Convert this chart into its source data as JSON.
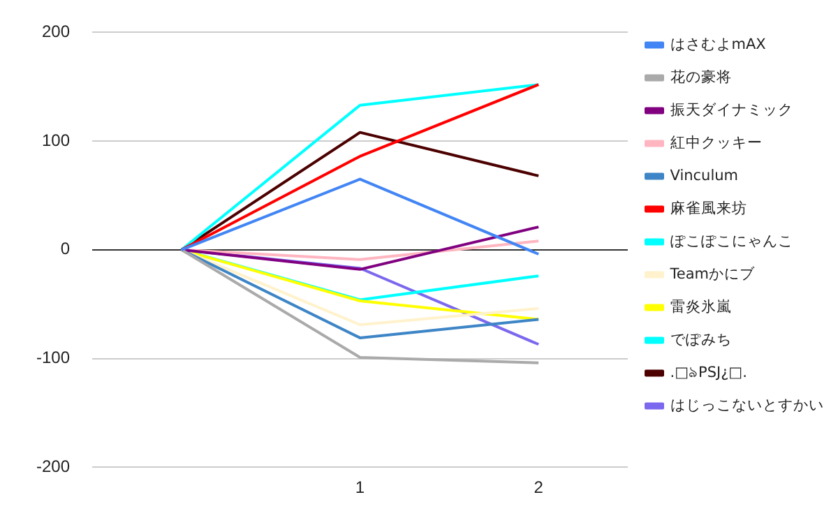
{
  "chart_data": {
    "type": "line",
    "categories": [
      null,
      "1",
      "2"
    ],
    "series": [
      {
        "name": "はさむよmAX",
        "color": "#4285f4",
        "values": [
          0,
          65,
          -4
        ]
      },
      {
        "name": "花の豪将",
        "color": "#aaaaaa",
        "values": [
          0,
          -99,
          -104
        ]
      },
      {
        "name": "振天ダイナミック",
        "color": "#800080",
        "values": [
          0,
          -18,
          21
        ]
      },
      {
        "name": "紅中クッキー",
        "color": "#ffb6c1",
        "values": [
          0,
          -9,
          8
        ]
      },
      {
        "name": "Vinculum",
        "color": "#3d85c6",
        "values": [
          0,
          -81,
          -64
        ]
      },
      {
        "name": "麻雀風来坊",
        "color": "#ff0000",
        "values": [
          0,
          86,
          152
        ]
      },
      {
        "name": "ぽこぽこにゃんこ",
        "color": "#00ffff",
        "values": [
          0,
          133,
          152
        ]
      },
      {
        "name": "Teamかにブ",
        "color": "#fff2cc",
        "values": [
          0,
          -69,
          -54
        ]
      },
      {
        "name": "雷炎氷嵐",
        "color": "#ffff00",
        "values": [
          0,
          -47,
          -64
        ]
      },
      {
        "name": "でぽみち",
        "color": "#00ffff",
        "values": [
          0,
          -46,
          -24
        ]
      },
      {
        "name": ".□ঌPSJ¿□.",
        "color": "#4c0000",
        "values": [
          0,
          108,
          68
        ]
      },
      {
        "name": "はじっこないとすかい",
        "color": "#7b68ee",
        "values": [
          0,
          -17,
          -87
        ]
      }
    ],
    "ylim": [
      -200,
      200
    ],
    "yticks": [
      -200,
      -100,
      0,
      100,
      200
    ],
    "grid": "y",
    "legend": "right",
    "marker": "none",
    "line_style": "solid"
  }
}
